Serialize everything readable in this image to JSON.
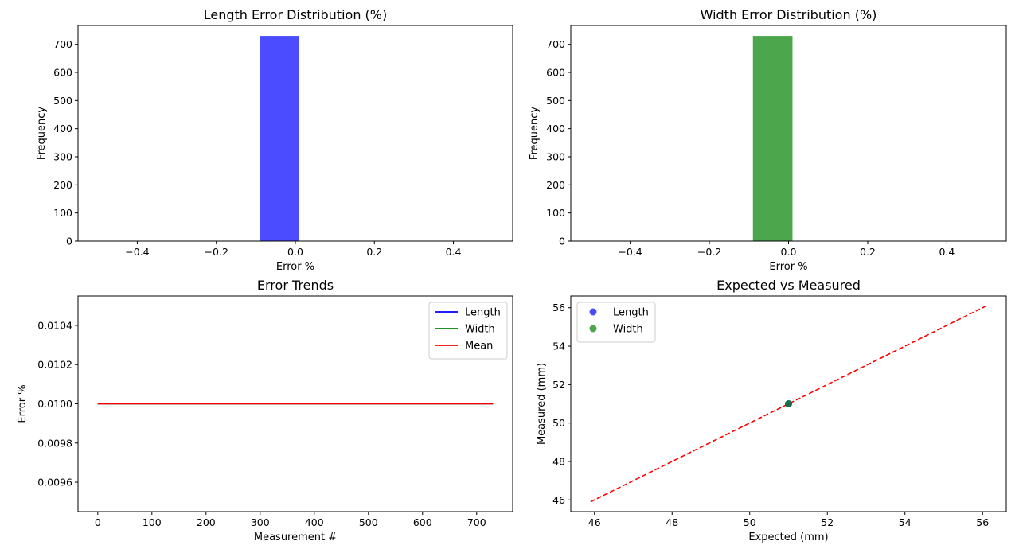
{
  "chart_data": [
    {
      "type": "bar",
      "title": "Length Error Distribution (%)",
      "xlabel": "Error %",
      "ylabel": "Frequency",
      "xlim": [
        -0.55,
        0.55
      ],
      "ylim": [
        0,
        767
      ],
      "xticks": [
        -0.4,
        -0.2,
        0.0,
        0.2,
        0.4
      ],
      "xtick_labels": [
        "−0.4",
        "−0.2",
        "0.0",
        "0.2",
        "0.4"
      ],
      "yticks": [
        0,
        100,
        200,
        300,
        400,
        500,
        600,
        700
      ],
      "ytick_labels": [
        "0",
        "100",
        "200",
        "300",
        "400",
        "500",
        "600",
        "700"
      ],
      "bins": [
        {
          "x0": -0.09,
          "x1": 0.01,
          "count": 730
        }
      ],
      "color": "#4b4bff"
    },
    {
      "type": "bar",
      "title": "Width Error Distribution (%)",
      "xlabel": "Error %",
      "ylabel": "Frequency",
      "xlim": [
        -0.55,
        0.55
      ],
      "ylim": [
        0,
        767
      ],
      "xticks": [
        -0.4,
        -0.2,
        0.0,
        0.2,
        0.4
      ],
      "xtick_labels": [
        "−0.4",
        "−0.2",
        "0.0",
        "0.2",
        "0.4"
      ],
      "yticks": [
        0,
        100,
        200,
        300,
        400,
        500,
        600,
        700
      ],
      "ytick_labels": [
        "0",
        "100",
        "200",
        "300",
        "400",
        "500",
        "600",
        "700"
      ],
      "bins": [
        {
          "x0": -0.09,
          "x1": 0.01,
          "count": 730
        }
      ],
      "color": "#4ca64c"
    },
    {
      "type": "line",
      "title": "Error Trends",
      "xlabel": "Measurement #",
      "ylabel": "Error %",
      "xlim": [
        -36.5,
        766.5
      ],
      "ylim": [
        0.00945,
        0.01055
      ],
      "xticks": [
        0,
        100,
        200,
        300,
        400,
        500,
        600,
        700
      ],
      "xtick_labels": [
        "0",
        "100",
        "200",
        "300",
        "400",
        "500",
        "600",
        "700"
      ],
      "yticks": [
        0.0096,
        0.0098,
        0.01,
        0.0102,
        0.0104
      ],
      "ytick_labels": [
        "0.0096",
        "0.0098",
        "0.0100",
        "0.0102",
        "0.0104"
      ],
      "series": [
        {
          "name": "Length",
          "color": "#0000ff",
          "x": [
            0,
            730
          ],
          "y": [
            0.01,
            0.01
          ]
        },
        {
          "name": "Width",
          "color": "#008000",
          "x": [
            0,
            730
          ],
          "y": [
            0.01,
            0.01
          ]
        },
        {
          "name": "Mean",
          "color": "#ff0000",
          "x": [
            0,
            730
          ],
          "y": [
            0.01,
            0.01
          ]
        }
      ],
      "legend": "top-right"
    },
    {
      "type": "scatter",
      "title": "Expected vs Measured",
      "xlabel": "Expected (mm)",
      "ylabel": "Measured (mm)",
      "xlim": [
        45.39,
        56.61
      ],
      "ylim": [
        45.39,
        56.61
      ],
      "xticks": [
        46,
        48,
        50,
        52,
        54,
        56
      ],
      "xtick_labels": [
        "46",
        "48",
        "50",
        "52",
        "54",
        "56"
      ],
      "yticks": [
        46,
        48,
        50,
        52,
        54,
        56
      ],
      "ytick_labels": [
        "46",
        "48",
        "50",
        "52",
        "54",
        "56"
      ],
      "series": [
        {
          "name": "Length",
          "color": "#0000ff",
          "x": [
            51
          ],
          "y": [
            51
          ]
        },
        {
          "name": "Width",
          "color": "#008000",
          "x": [
            51
          ],
          "y": [
            51
          ]
        }
      ],
      "reference_line": {
        "x": [
          45.9,
          56.1
        ],
        "y": [
          45.9,
          56.1
        ],
        "color": "#ff0000",
        "style": "dashed"
      },
      "legend": "top-left"
    }
  ]
}
